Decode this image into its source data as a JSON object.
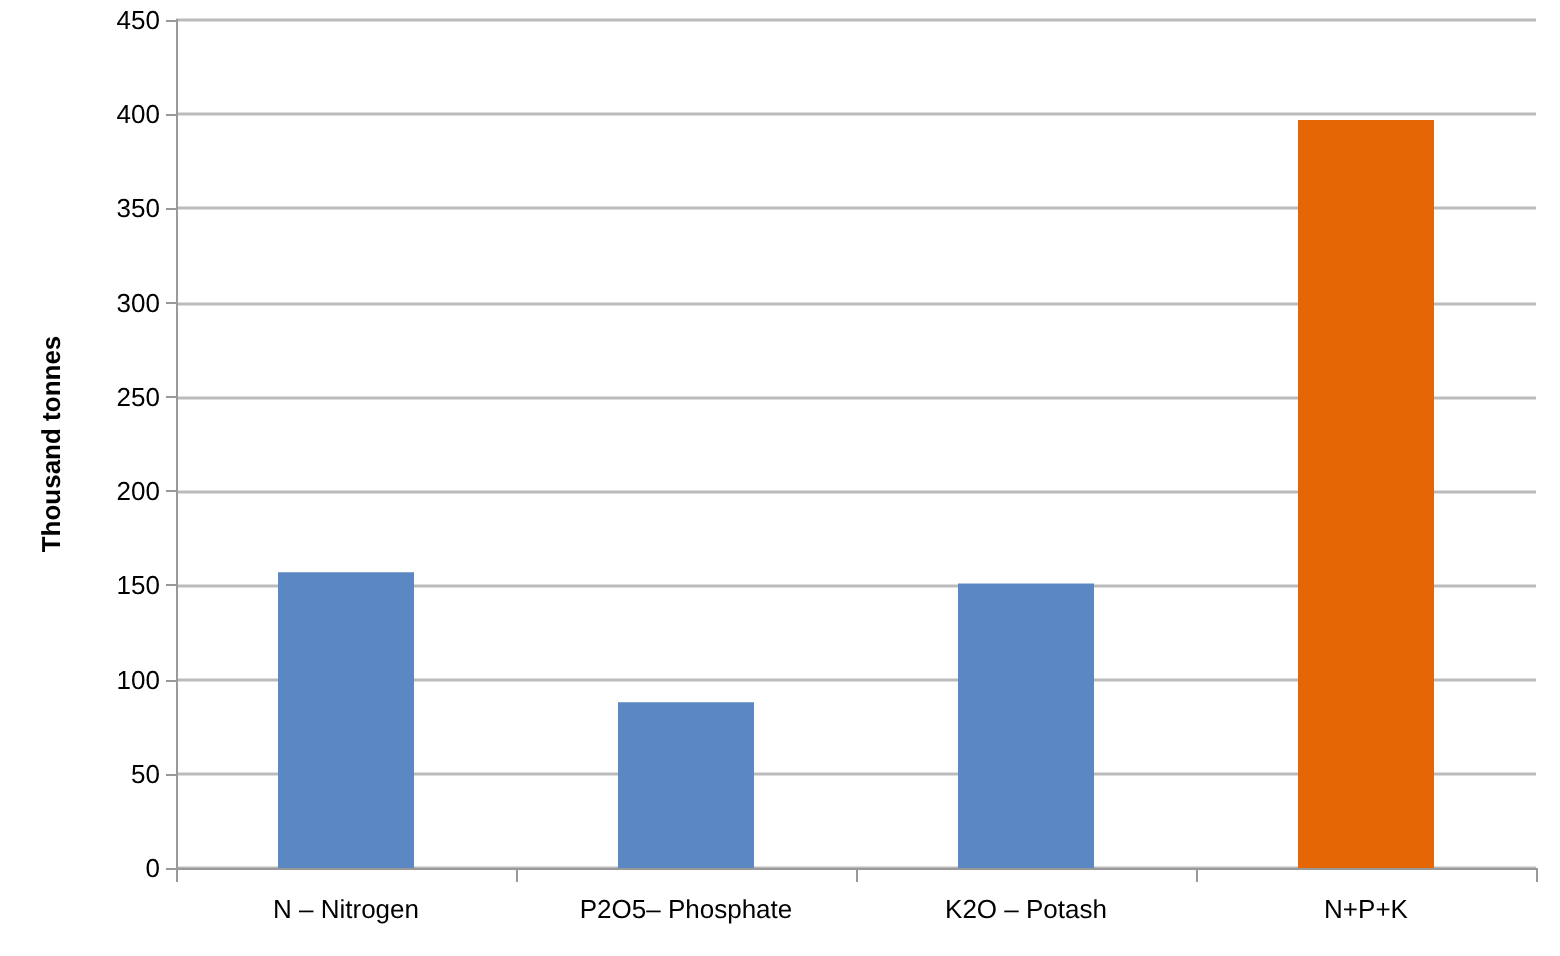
{
  "chart_data": {
    "type": "bar",
    "ylabel": "Thousand tonnes",
    "categories": [
      "N – Nitrogen",
      "P2O5– Phosphate",
      "K2O – Potash",
      "N+P+K"
    ],
    "values": [
      157,
      88,
      151,
      397
    ],
    "colors": [
      "#5b87c3",
      "#5b87c3",
      "#5b87c3",
      "#e56604"
    ],
    "ylim": [
      0,
      450
    ],
    "yticks": [
      0,
      50,
      100,
      150,
      200,
      250,
      300,
      350,
      400,
      450
    ],
    "grid": "y"
  }
}
